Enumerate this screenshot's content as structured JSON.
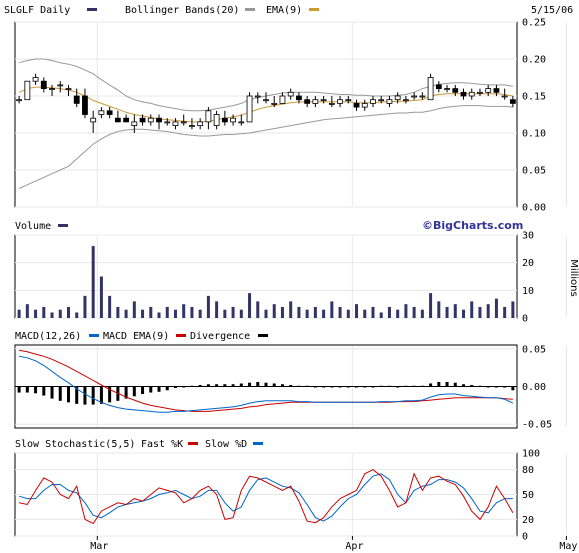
{
  "date_label": "5/15/06",
  "watermark": "©BigCharts.com",
  "colors": {
    "bar": "#333366",
    "boll": "#999999",
    "ema": "#cc9933",
    "macd": "#0066cc",
    "macd_ema": "#cc0000",
    "div": "#000000",
    "fast": "#cc0000",
    "slow": "#0066cc",
    "grid": "#e8e8e8"
  },
  "legends": {
    "price": [
      {
        "label": "SLGLF Daily",
        "swatch": "#333366"
      },
      {
        "label": "Bollinger Bands(20)",
        "swatch": "#999999"
      },
      {
        "label": "EMA(9)",
        "swatch": "#cc9933"
      }
    ],
    "volume": [
      {
        "label": "Volume",
        "swatch": "#333366"
      }
    ],
    "macd": [
      {
        "label": "MACD(12,26)",
        "swatch": "#0066cc"
      },
      {
        "label": "MACD EMA(9)",
        "swatch": "#cc0000"
      },
      {
        "label": "Divergence",
        "swatch": "#000000"
      }
    ],
    "stoch": [
      {
        "label": "Slow Stochastic(5,5)",
        "swatch": ""
      },
      {
        "label": "Fast %K",
        "swatch": "#cc0000"
      },
      {
        "label": "Slow %D",
        "swatch": "#0066cc"
      }
    ]
  },
  "chart_data": [
    {
      "type": "candlestick",
      "name": "price",
      "x_ticks": [
        "Mar",
        "Apr",
        "May"
      ],
      "x_tick_index": [
        10,
        41,
        67
      ],
      "ylim": [
        0,
        0.25
      ],
      "y_ticks": [
        "0.25",
        "0.20",
        "0.15",
        "0.10",
        "0.05",
        "0.00"
      ],
      "y_tick_values": [
        0.25,
        0.2,
        0.15,
        0.1,
        0.05,
        0.0
      ],
      "ohlc": [
        [
          0.145,
          0.15,
          0.14,
          0.145
        ],
        [
          0.145,
          0.17,
          0.145,
          0.17
        ],
        [
          0.17,
          0.18,
          0.165,
          0.175
        ],
        [
          0.17,
          0.175,
          0.155,
          0.16
        ],
        [
          0.16,
          0.165,
          0.15,
          0.16
        ],
        [
          0.165,
          0.17,
          0.155,
          0.165
        ],
        [
          0.16,
          0.165,
          0.15,
          0.16
        ],
        [
          0.15,
          0.16,
          0.135,
          0.14
        ],
        [
          0.15,
          0.16,
          0.12,
          0.125
        ],
        [
          0.115,
          0.13,
          0.1,
          0.12
        ],
        [
          0.125,
          0.135,
          0.12,
          0.13
        ],
        [
          0.13,
          0.135,
          0.12,
          0.125
        ],
        [
          0.12,
          0.13,
          0.115,
          0.115
        ],
        [
          0.12,
          0.125,
          0.115,
          0.115
        ],
        [
          0.11,
          0.125,
          0.1,
          0.115
        ],
        [
          0.12,
          0.125,
          0.11,
          0.115
        ],
        [
          0.115,
          0.125,
          0.11,
          0.12
        ],
        [
          0.12,
          0.125,
          0.105,
          0.115
        ],
        [
          0.115,
          0.12,
          0.11,
          0.115
        ],
        [
          0.11,
          0.12,
          0.105,
          0.115
        ],
        [
          0.115,
          0.125,
          0.11,
          0.115
        ],
        [
          0.11,
          0.12,
          0.105,
          0.11
        ],
        [
          0.11,
          0.12,
          0.105,
          0.115
        ],
        [
          0.115,
          0.135,
          0.105,
          0.13
        ],
        [
          0.11,
          0.13,
          0.105,
          0.125
        ],
        [
          0.12,
          0.13,
          0.11,
          0.115
        ],
        [
          0.115,
          0.125,
          0.11,
          0.12
        ],
        [
          0.115,
          0.125,
          0.11,
          0.115
        ],
        [
          0.115,
          0.155,
          0.115,
          0.15
        ],
        [
          0.15,
          0.155,
          0.14,
          0.15
        ],
        [
          0.145,
          0.155,
          0.14,
          0.145
        ],
        [
          0.14,
          0.15,
          0.135,
          0.14
        ],
        [
          0.14,
          0.155,
          0.14,
          0.15
        ],
        [
          0.15,
          0.16,
          0.145,
          0.155
        ],
        [
          0.15,
          0.155,
          0.14,
          0.145
        ],
        [
          0.145,
          0.15,
          0.135,
          0.14
        ],
        [
          0.14,
          0.15,
          0.135,
          0.145
        ],
        [
          0.145,
          0.15,
          0.14,
          0.145
        ],
        [
          0.14,
          0.15,
          0.135,
          0.14
        ],
        [
          0.14,
          0.15,
          0.135,
          0.145
        ],
        [
          0.145,
          0.15,
          0.14,
          0.145
        ],
        [
          0.14,
          0.145,
          0.13,
          0.135
        ],
        [
          0.135,
          0.145,
          0.13,
          0.14
        ],
        [
          0.14,
          0.15,
          0.135,
          0.145
        ],
        [
          0.145,
          0.15,
          0.14,
          0.145
        ],
        [
          0.14,
          0.15,
          0.135,
          0.145
        ],
        [
          0.145,
          0.155,
          0.14,
          0.15
        ],
        [
          0.145,
          0.15,
          0.14,
          0.145
        ],
        [
          0.15,
          0.155,
          0.145,
          0.15
        ],
        [
          0.15,
          0.155,
          0.145,
          0.15
        ],
        [
          0.145,
          0.18,
          0.145,
          0.175
        ],
        [
          0.165,
          0.17,
          0.155,
          0.16
        ],
        [
          0.16,
          0.165,
          0.155,
          0.16
        ],
        [
          0.16,
          0.165,
          0.15,
          0.155
        ],
        [
          0.155,
          0.16,
          0.145,
          0.15
        ],
        [
          0.15,
          0.16,
          0.145,
          0.155
        ],
        [
          0.155,
          0.16,
          0.15,
          0.155
        ],
        [
          0.155,
          0.165,
          0.15,
          0.16
        ],
        [
          0.16,
          0.165,
          0.15,
          0.155
        ],
        [
          0.15,
          0.16,
          0.145,
          0.15
        ],
        [
          0.145,
          0.15,
          0.135,
          0.14
        ]
      ],
      "boll_upper": [
        0.195,
        0.198,
        0.2,
        0.2,
        0.198,
        0.195,
        0.193,
        0.19,
        0.185,
        0.18,
        0.172,
        0.165,
        0.158,
        0.15,
        0.145,
        0.142,
        0.14,
        0.137,
        0.135,
        0.133,
        0.131,
        0.13,
        0.13,
        0.131,
        0.133,
        0.135,
        0.137,
        0.14,
        0.145,
        0.148,
        0.15,
        0.152,
        0.154,
        0.155,
        0.155,
        0.155,
        0.155,
        0.154,
        0.153,
        0.152,
        0.152,
        0.151,
        0.151,
        0.15,
        0.15,
        0.15,
        0.151,
        0.152,
        0.155,
        0.16,
        0.163,
        0.166,
        0.167,
        0.168,
        0.168,
        0.167,
        0.166,
        0.165,
        0.165,
        0.165,
        0.163
      ],
      "boll_lower": [
        0.025,
        0.03,
        0.035,
        0.04,
        0.045,
        0.05,
        0.055,
        0.065,
        0.075,
        0.085,
        0.092,
        0.098,
        0.102,
        0.104,
        0.105,
        0.105,
        0.104,
        0.103,
        0.102,
        0.1,
        0.098,
        0.097,
        0.096,
        0.096,
        0.097,
        0.098,
        0.098,
        0.099,
        0.1,
        0.102,
        0.104,
        0.106,
        0.108,
        0.11,
        0.112,
        0.114,
        0.116,
        0.118,
        0.119,
        0.12,
        0.121,
        0.122,
        0.123,
        0.124,
        0.125,
        0.126,
        0.127,
        0.127,
        0.128,
        0.128,
        0.13,
        0.133,
        0.135,
        0.136,
        0.137,
        0.137,
        0.137,
        0.136,
        0.136,
        0.136,
        0.135
      ],
      "ema": [
        0.155,
        0.16,
        0.162,
        0.162,
        0.161,
        0.16,
        0.158,
        0.155,
        0.15,
        0.144,
        0.14,
        0.136,
        0.132,
        0.128,
        0.125,
        0.123,
        0.121,
        0.119,
        0.118,
        0.117,
        0.116,
        0.115,
        0.115,
        0.116,
        0.118,
        0.12,
        0.122,
        0.124,
        0.128,
        0.132,
        0.135,
        0.137,
        0.139,
        0.141,
        0.142,
        0.142,
        0.142,
        0.142,
        0.142,
        0.142,
        0.142,
        0.141,
        0.141,
        0.141,
        0.142,
        0.142,
        0.143,
        0.143,
        0.144,
        0.145,
        0.15,
        0.152,
        0.153,
        0.153,
        0.153,
        0.153,
        0.153,
        0.153,
        0.153,
        0.152,
        0.15
      ]
    },
    {
      "type": "bar",
      "name": "volume",
      "unit_label": "Millions",
      "ylim": [
        0,
        30
      ],
      "y_ticks": [
        "30",
        "20",
        "10",
        "0"
      ],
      "y_tick_values": [
        30,
        20,
        10,
        0
      ],
      "values": [
        3,
        5,
        3,
        4,
        2,
        3,
        4,
        2,
        8,
        26,
        15,
        8,
        4,
        3,
        6,
        3,
        4,
        2,
        4,
        3,
        5,
        4,
        3,
        8,
        6,
        3,
        4,
        3,
        9,
        6,
        3,
        5,
        4,
        6,
        4,
        3,
        4,
        3,
        6,
        4,
        3,
        5,
        3,
        4,
        2,
        4,
        3,
        5,
        4,
        3,
        9,
        6,
        4,
        5,
        3,
        6,
        4,
        5,
        7,
        4,
        6
      ]
    },
    {
      "type": "line",
      "name": "macd",
      "ylim": [
        -0.055,
        0.055
      ],
      "y_ticks": [
        "0.05",
        "0.00",
        "-0.05"
      ],
      "y_tick_values": [
        0.05,
        0.0,
        -0.05
      ],
      "series": [
        {
          "name": "MACD(12,26)",
          "values": [
            0.04,
            0.038,
            0.034,
            0.028,
            0.02,
            0.012,
            0.005,
            -0.003,
            -0.01,
            -0.016,
            -0.021,
            -0.025,
            -0.028,
            -0.03,
            -0.031,
            -0.032,
            -0.033,
            -0.034,
            -0.034,
            -0.033,
            -0.033,
            -0.032,
            -0.031,
            -0.03,
            -0.029,
            -0.028,
            -0.027,
            -0.025,
            -0.022,
            -0.02,
            -0.019,
            -0.019,
            -0.019,
            -0.019,
            -0.02,
            -0.02,
            -0.021,
            -0.021,
            -0.021,
            -0.021,
            -0.021,
            -0.021,
            -0.021,
            -0.021,
            -0.02,
            -0.02,
            -0.02,
            -0.019,
            -0.019,
            -0.018,
            -0.014,
            -0.011,
            -0.01,
            -0.01,
            -0.012,
            -0.013,
            -0.014,
            -0.015,
            -0.015,
            -0.017,
            -0.022
          ]
        },
        {
          "name": "MACD EMA(9)",
          "values": [
            0.048,
            0.046,
            0.043,
            0.04,
            0.036,
            0.031,
            0.026,
            0.02,
            0.014,
            0.008,
            0.002,
            -0.004,
            -0.009,
            -0.014,
            -0.018,
            -0.022,
            -0.025,
            -0.027,
            -0.029,
            -0.031,
            -0.032,
            -0.033,
            -0.033,
            -0.033,
            -0.032,
            -0.031,
            -0.03,
            -0.029,
            -0.027,
            -0.026,
            -0.024,
            -0.023,
            -0.022,
            -0.021,
            -0.021,
            -0.021,
            -0.021,
            -0.021,
            -0.021,
            -0.021,
            -0.021,
            -0.021,
            -0.021,
            -0.021,
            -0.021,
            -0.021,
            -0.02,
            -0.02,
            -0.02,
            -0.019,
            -0.018,
            -0.017,
            -0.016,
            -0.015,
            -0.015,
            -0.015,
            -0.015,
            -0.015,
            -0.015,
            -0.016,
            -0.017
          ]
        }
      ],
      "divergence": [
        -0.008,
        -0.008,
        -0.009,
        -0.012,
        -0.016,
        -0.019,
        -0.021,
        -0.023,
        -0.024,
        -0.024,
        -0.023,
        -0.021,
        -0.019,
        -0.016,
        -0.013,
        -0.01,
        -0.008,
        -0.007,
        -0.005,
        -0.002,
        -0.001,
        0.001,
        0.002,
        0.003,
        0.003,
        0.003,
        0.003,
        0.004,
        0.005,
        0.006,
        0.005,
        0.004,
        0.003,
        0.002,
        0.001,
        0.001,
        0.0,
        0.0,
        0.0,
        0.0,
        0.0,
        0.0,
        0.0,
        0.0,
        0.001,
        0.001,
        0.0,
        0.001,
        0.001,
        0.001,
        0.004,
        0.006,
        0.006,
        0.005,
        0.003,
        0.002,
        0.001,
        0.0,
        0.0,
        -0.001,
        -0.005
      ]
    },
    {
      "type": "line",
      "name": "stochastic",
      "ylim": [
        0,
        100
      ],
      "y_ticks": [
        "100",
        "80",
        "50",
        "20",
        "0"
      ],
      "y_tick_values": [
        100,
        80,
        50,
        20,
        0
      ],
      "series": [
        {
          "name": "Fast %K",
          "values": [
            40,
            38,
            55,
            70,
            65,
            50,
            45,
            60,
            20,
            15,
            30,
            35,
            40,
            38,
            45,
            42,
            50,
            58,
            55,
            52,
            40,
            45,
            55,
            60,
            50,
            20,
            22,
            55,
            72,
            70,
            65,
            60,
            55,
            60,
            42,
            18,
            16,
            22,
            35,
            45,
            50,
            55,
            75,
            80,
            72,
            55,
            35,
            40,
            75,
            55,
            70,
            72,
            66,
            62,
            48,
            30,
            20,
            35,
            60,
            45,
            28
          ]
        },
        {
          "name": "Slow %D",
          "values": [
            48,
            45,
            45,
            55,
            62,
            62,
            55,
            52,
            40,
            25,
            22,
            28,
            35,
            38,
            40,
            42,
            45,
            50,
            52,
            55,
            50,
            45,
            48,
            55,
            55,
            40,
            30,
            35,
            55,
            68,
            70,
            65,
            60,
            58,
            52,
            38,
            22,
            18,
            24,
            35,
            45,
            50,
            62,
            72,
            75,
            68,
            50,
            40,
            55,
            60,
            62,
            68,
            68,
            65,
            58,
            45,
            30,
            28,
            40,
            45,
            45
          ]
        }
      ]
    }
  ]
}
